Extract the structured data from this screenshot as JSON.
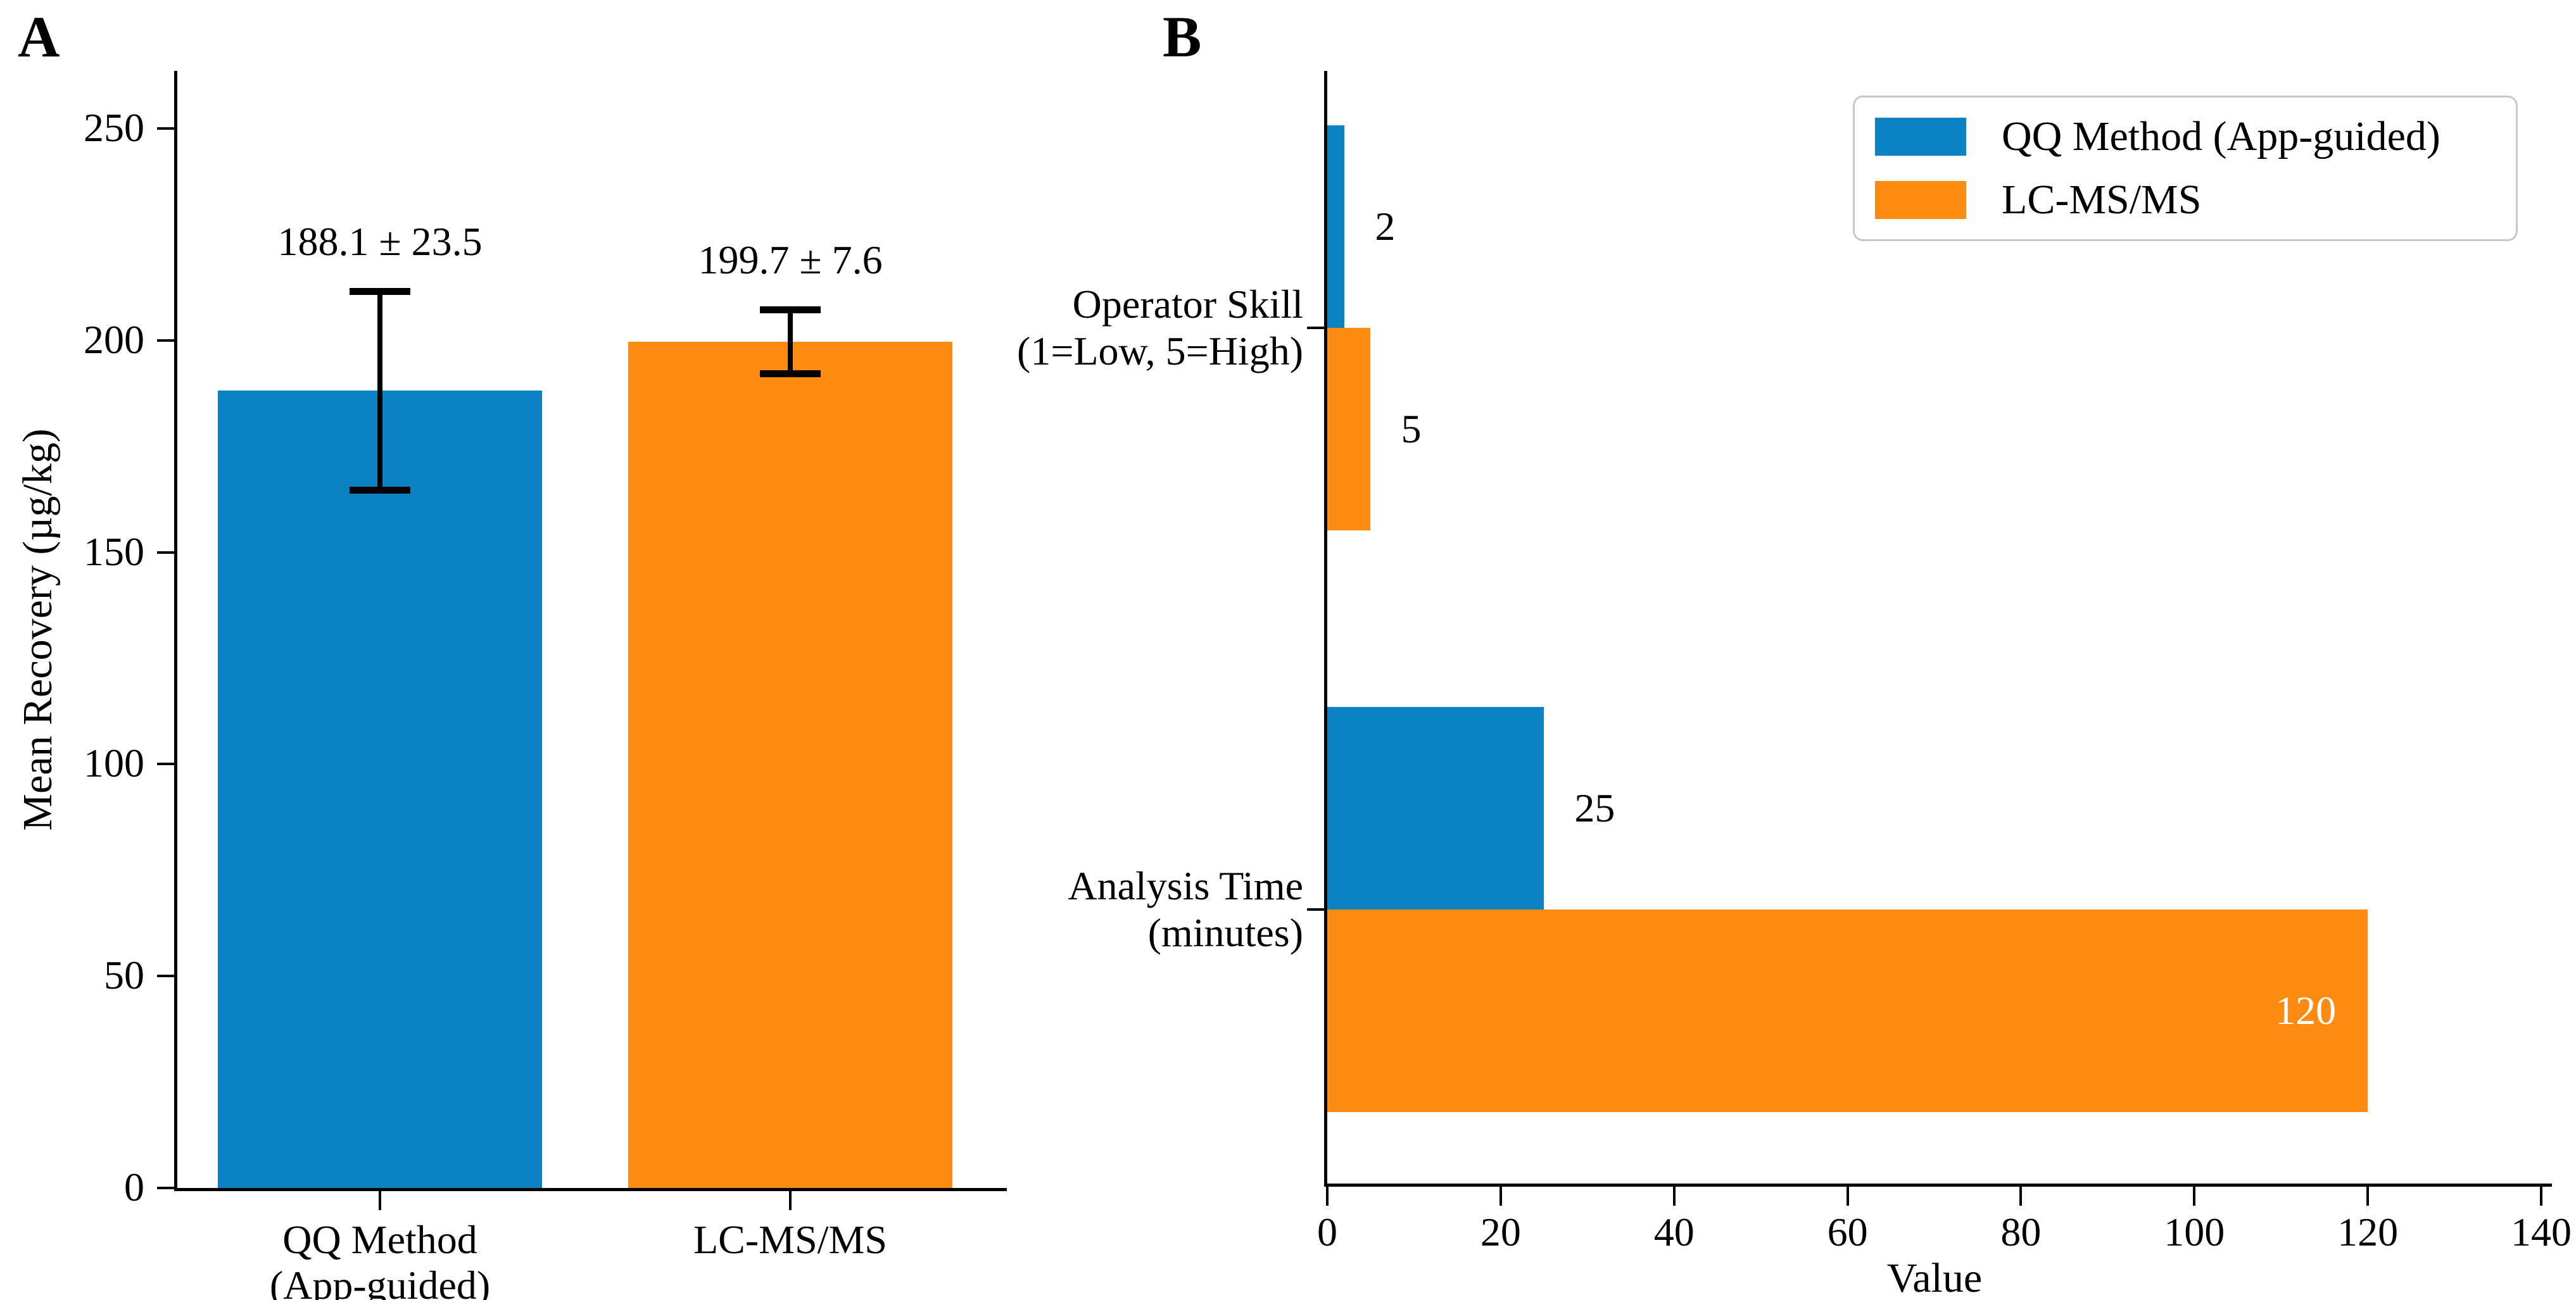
{
  "figure": {
    "panel_a_label": "A",
    "panel_b_label": "B"
  },
  "colors": {
    "qq_blue": "#0b82c1",
    "lcms_orange": "#fd8b11",
    "axis_black": "#000000",
    "inside_bar_label": "#ffffff",
    "legend_border": "#c8c8c8"
  },
  "chart_data": [
    {
      "id": "panel_a",
      "type": "bar",
      "title": "",
      "categories": [
        [
          "QQ Method",
          "(App-guided)"
        ],
        [
          "LC-MS/MS"
        ]
      ],
      "values": [
        188.1,
        199.7
      ],
      "errors": [
        23.5,
        7.6
      ],
      "annotations": [
        "188.1 ± 23.5",
        "199.7 ± 7.6"
      ],
      "bar_colors": [
        "#0b82c1",
        "#fd8b11"
      ],
      "xlabel": "",
      "ylabel": "Mean Recovery (µg/kg)",
      "yticks": [
        0,
        50,
        100,
        150,
        200,
        250
      ],
      "ylim": [
        0,
        263
      ],
      "grid": false
    },
    {
      "id": "panel_b",
      "type": "bar-horizontal",
      "title": "",
      "categories": [
        [
          "Operator Skill",
          "(1=Low, 5=High)"
        ],
        [
          "Analysis Time",
          "(minutes)"
        ]
      ],
      "series": [
        {
          "name": "QQ Method (App-guided)",
          "color": "#0b82c1",
          "values": [
            2,
            25
          ],
          "value_labels": [
            "2",
            "25"
          ],
          "label_inside": [
            false,
            false
          ]
        },
        {
          "name": "LC-MS/MS",
          "color": "#fd8b11",
          "values": [
            5,
            120
          ],
          "value_labels": [
            "5",
            "120"
          ],
          "label_inside": [
            false,
            true
          ]
        }
      ],
      "xlabel": "Value",
      "xticks": [
        0,
        20,
        40,
        60,
        80,
        100,
        120,
        140
      ],
      "xlim": [
        0,
        140
      ],
      "grid": false,
      "legend_position": "upper right"
    }
  ]
}
